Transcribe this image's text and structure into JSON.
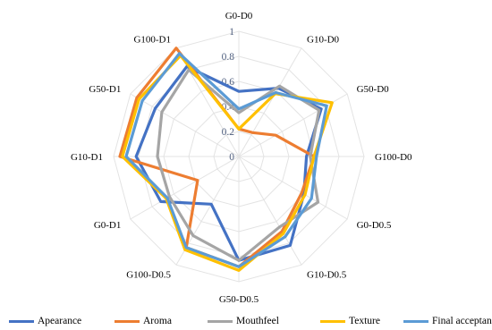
{
  "chart_data": {
    "type": "radar",
    "axes": [
      "G0-D0",
      "G10-D0",
      "G50-D0",
      "G100-D0",
      "G0-D0.5",
      "G10-D0.5",
      "G50-D0.5",
      "G100-D0.5",
      "G0-D1",
      "G10-D1",
      "G50-D1",
      "G100-D1"
    ],
    "ticks": [
      "0",
      "0.2",
      "0.4",
      "0.6",
      "0.8",
      "1"
    ],
    "rlim": [
      0,
      1
    ],
    "grid": true,
    "legend_position": "bottom",
    "series": [
      {
        "name": "Apearance",
        "color": "#4472c4",
        "values": [
          0.52,
          0.63,
          0.76,
          0.54,
          0.6,
          0.82,
          0.83,
          0.44,
          0.72,
          0.82,
          0.77,
          0.83
        ]
      },
      {
        "name": "Aroma",
        "color": "#ed7d31",
        "values": [
          0.22,
          0.22,
          0.34,
          0.6,
          0.58,
          0.69,
          0.88,
          0.84,
          0.38,
          0.95,
          0.94,
          1.0
        ]
      },
      {
        "name": "Mouthfeel",
        "color": "#a5a5a5",
        "values": [
          0.35,
          0.65,
          0.74,
          0.57,
          0.73,
          0.65,
          0.83,
          0.73,
          0.64,
          0.65,
          0.71,
          0.8
        ]
      },
      {
        "name": "Texture",
        "color": "#ffc000",
        "values": [
          0.22,
          0.58,
          0.86,
          0.6,
          0.61,
          0.71,
          0.91,
          0.86,
          0.67,
          0.93,
          0.92,
          0.93
        ]
      },
      {
        "name": "Final acceptance",
        "color": "#5b9bd5",
        "values": [
          0.38,
          0.59,
          0.81,
          0.62,
          0.67,
          0.74,
          0.88,
          0.84,
          0.66,
          0.9,
          0.89,
          0.95
        ]
      }
    ]
  }
}
